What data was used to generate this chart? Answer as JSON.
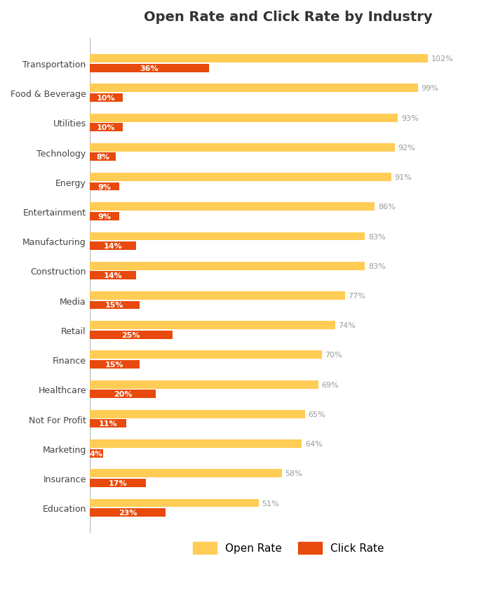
{
  "title": "Open Rate and Click Rate by Industry",
  "industries": [
    "Transportation",
    "Food & Beverage",
    "Utilities",
    "Technology",
    "Energy",
    "Entertainment",
    "Manufacturing",
    "Construction",
    "Media",
    "Retail",
    "Finance",
    "Healthcare",
    "Not For Profit",
    "Marketing",
    "Insurance",
    "Education"
  ],
  "open_rates": [
    102,
    99,
    93,
    92,
    91,
    86,
    83,
    83,
    77,
    74,
    70,
    69,
    65,
    64,
    58,
    51
  ],
  "click_rates": [
    36,
    10,
    10,
    8,
    9,
    9,
    14,
    14,
    15,
    25,
    15,
    20,
    11,
    4,
    17,
    23
  ],
  "open_color": "#FFCC55",
  "click_color": "#E8490C",
  "background_color": "#FFFFFF",
  "title_fontsize": 14,
  "label_fontsize": 9,
  "bar_label_fontsize": 8,
  "legend_fontsize": 11,
  "bar_height": 0.28,
  "open_label": "Open Rate",
  "click_label": "Click Rate"
}
